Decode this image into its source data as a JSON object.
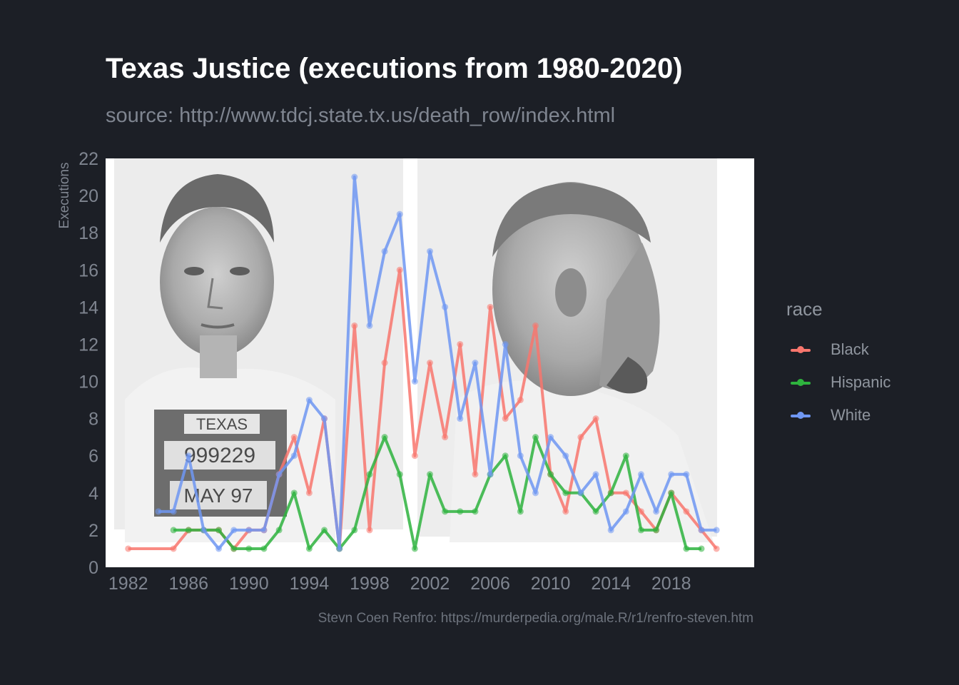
{
  "title": "Texas Justice (executions from 1980-2020)",
  "subtitle": "source: http://www.tdcj.state.tx.us/death_row/index.html",
  "caption": "Stevn Coen Renfro: https://murderpedia.org/male.R/r1/renfro-steven.htm",
  "background_image": {
    "description_icon": "mugshot-photo",
    "placard_text": [
      "TEXAS",
      "999229",
      "MAY 97"
    ]
  },
  "colors": {
    "background": "#1c1f26",
    "Black": "#f8766d",
    "Hispanic": "#2eb33e",
    "White": "#6f97f2"
  },
  "chart_data": {
    "type": "line",
    "title": "Texas Justice (executions from 1980-2020)",
    "subtitle": "source: http://www.tdcj.state.tx.us/death_row/index.html",
    "xlabel": "",
    "ylabel": "Executions",
    "xlim": [
      1980.5,
      2023.5
    ],
    "ylim": [
      0,
      22
    ],
    "xticks": [
      1982,
      1986,
      1990,
      1994,
      1998,
      2002,
      2006,
      2010,
      2014,
      2018
    ],
    "yticks": [
      0,
      2,
      4,
      6,
      8,
      10,
      12,
      14,
      16,
      18,
      20,
      22
    ],
    "legend": {
      "title": "race",
      "position": "right"
    },
    "grid": false,
    "series": [
      {
        "name": "Black",
        "x": [
          1982,
          1985,
          1986,
          1987,
          1988,
          1989,
          1990,
          1991,
          1992,
          1993,
          1994,
          1995,
          1996,
          1997,
          1998,
          1999,
          2000,
          2001,
          2002,
          2003,
          2004,
          2005,
          2006,
          2007,
          2008,
          2009,
          2010,
          2011,
          2012,
          2013,
          2014,
          2015,
          2016,
          2017,
          2018,
          2019,
          2020,
          2021
        ],
        "values": [
          1,
          1,
          2,
          2,
          2,
          1,
          2,
          2,
          5,
          7,
          4,
          8,
          1,
          13,
          2,
          11,
          16,
          6,
          11,
          7,
          12,
          5,
          14,
          8,
          9,
          13,
          5,
          3,
          7,
          8,
          4,
          4,
          3,
          2,
          4,
          3,
          2,
          1
        ]
      },
      {
        "name": "Hispanic",
        "x": [
          1985,
          1986,
          1987,
          1988,
          1989,
          1990,
          1991,
          1992,
          1993,
          1994,
          1995,
          1996,
          1997,
          1998,
          1999,
          2000,
          2001,
          2002,
          2003,
          2004,
          2005,
          2006,
          2007,
          2008,
          2009,
          2010,
          2011,
          2012,
          2013,
          2014,
          2015,
          2016,
          2017,
          2018,
          2019,
          2020
        ],
        "values": [
          2,
          2,
          2,
          2,
          1,
          1,
          1,
          2,
          4,
          1,
          2,
          1,
          2,
          5,
          7,
          5,
          1,
          5,
          3,
          3,
          3,
          5,
          6,
          3,
          7,
          5,
          4,
          4,
          3,
          4,
          6,
          2,
          2,
          4,
          1,
          1
        ]
      },
      {
        "name": "White",
        "x": [
          1984,
          1985,
          1986,
          1987,
          1988,
          1989,
          1990,
          1991,
          1992,
          1993,
          1994,
          1995,
          1996,
          1997,
          1998,
          1999,
          2000,
          2001,
          2002,
          2003,
          2004,
          2005,
          2006,
          2007,
          2008,
          2009,
          2010,
          2011,
          2012,
          2013,
          2014,
          2015,
          2016,
          2017,
          2018,
          2019,
          2020,
          2021
        ],
        "values": [
          3,
          3,
          6,
          2,
          1,
          2,
          2,
          2,
          5,
          6,
          9,
          8,
          1,
          21,
          13,
          17,
          19,
          10,
          17,
          14,
          8,
          11,
          5,
          12,
          6,
          4,
          7,
          6,
          4,
          5,
          2,
          3,
          5,
          3,
          5,
          5,
          2,
          2
        ]
      }
    ]
  }
}
